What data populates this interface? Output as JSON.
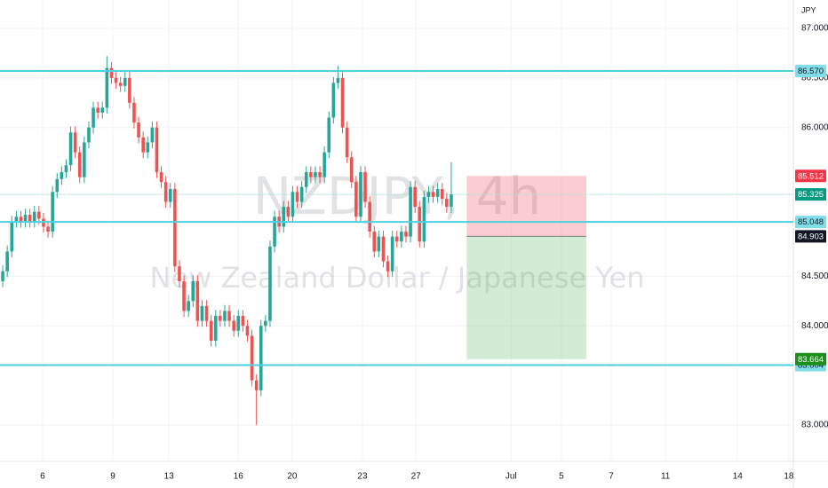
{
  "chart_data": {
    "type": "candlestick",
    "currency": "JPY",
    "watermark": {
      "symbol": "NZDJPY, 4h",
      "description": "New Zealand Dollar / Japanese Yen"
    },
    "up_color": "#26a69a",
    "down_color": "#ef5350",
    "open": [
      84.45,
      84.55,
      84.75,
      85.05,
      85.1,
      85.05,
      85.12,
      85.05,
      85.15,
      85.08,
      85.0,
      84.95,
      85.35,
      85.48,
      85.55,
      85.62,
      85.95,
      85.75,
      85.5,
      85.85,
      86.0,
      86.2,
      86.15,
      86.2,
      86.6,
      86.5,
      86.45,
      86.42,
      86.5,
      86.25,
      86.05,
      85.9,
      85.75,
      85.85,
      86.0,
      85.55,
      85.45,
      85.25,
      85.38,
      84.6,
      84.45,
      84.15,
      84.25,
      84.45,
      84.05,
      84.2,
      84.05,
      83.85,
      84.1,
      84.05,
      84.15,
      84.05,
      83.95,
      84.1,
      84.0,
      83.9,
      83.45,
      83.35,
      84.0,
      84.05,
      84.8,
      85.1,
      85.0,
      85.2,
      85.1,
      85.35,
      85.25,
      85.4,
      85.55,
      85.5,
      85.55,
      85.5,
      85.75,
      86.1,
      86.45,
      86.5,
      86.0,
      85.7,
      85.45,
      85.1,
      85.55,
      85.25,
      84.95,
      84.75,
      84.9,
      84.65,
      84.55,
      84.9,
      84.85,
      84.95,
      84.9,
      85.4,
      85.2,
      84.85,
      85.3,
      85.35,
      85.3,
      85.38,
      85.28,
      85.2
    ],
    "high": [
      84.61,
      84.81,
      85.11,
      85.16,
      85.16,
      85.18,
      85.18,
      85.21,
      85.21,
      85.14,
      85.06,
      85.41,
      85.54,
      85.61,
      85.68,
      86.01,
      86.01,
      85.81,
      85.91,
      86.06,
      86.26,
      86.26,
      86.26,
      86.72,
      86.66,
      86.56,
      86.51,
      86.56,
      86.56,
      86.31,
      86.11,
      85.96,
      85.91,
      86.06,
      86.06,
      85.61,
      85.51,
      85.44,
      85.44,
      84.66,
      84.51,
      84.31,
      84.51,
      84.51,
      84.26,
      84.26,
      84.11,
      84.16,
      84.16,
      84.21,
      84.21,
      84.11,
      84.16,
      84.16,
      84.06,
      83.96,
      83.51,
      84.06,
      84.11,
      84.86,
      85.16,
      85.16,
      85.26,
      85.26,
      85.41,
      85.41,
      85.46,
      85.61,
      85.61,
      85.61,
      85.61,
      85.81,
      86.16,
      86.51,
      86.62,
      86.56,
      86.06,
      85.76,
      85.51,
      85.61,
      85.61,
      85.31,
      85.01,
      84.96,
      84.96,
      84.71,
      84.96,
      84.96,
      85.01,
      85.01,
      85.46,
      85.46,
      85.26,
      85.36,
      85.41,
      85.41,
      85.44,
      85.44,
      85.34,
      85.65
    ],
    "low": [
      84.39,
      84.49,
      84.69,
      84.99,
      84.99,
      84.99,
      84.99,
      84.99,
      85.02,
      84.94,
      84.89,
      84.89,
      85.29,
      85.42,
      85.49,
      85.56,
      85.69,
      85.44,
      85.44,
      85.79,
      85.94,
      86.09,
      86.09,
      86.14,
      86.44,
      86.39,
      86.36,
      86.36,
      86.19,
      85.99,
      85.84,
      85.69,
      85.69,
      85.79,
      85.49,
      85.39,
      85.19,
      85.19,
      84.54,
      84.39,
      84.09,
      84.09,
      84.19,
      83.99,
      83.99,
      83.99,
      83.79,
      83.79,
      83.99,
      83.99,
      83.99,
      83.89,
      83.89,
      83.94,
      83.84,
      83.39,
      83.0,
      83.29,
      83.94,
      83.99,
      84.74,
      84.94,
      84.94,
      85.04,
      85.04,
      85.19,
      85.19,
      85.34,
      85.44,
      85.44,
      85.44,
      85.44,
      85.69,
      86.04,
      86.39,
      85.94,
      85.64,
      85.39,
      85.04,
      85.04,
      85.19,
      84.89,
      84.69,
      84.69,
      84.59,
      84.49,
      84.49,
      84.79,
      84.79,
      84.84,
      84.84,
      85.14,
      84.79,
      84.79,
      85.24,
      85.24,
      85.24,
      85.22,
      85.14,
      85.14
    ],
    "close": [
      84.55,
      84.75,
      85.05,
      85.1,
      85.05,
      85.12,
      85.05,
      85.15,
      85.08,
      85.0,
      84.95,
      85.35,
      85.48,
      85.55,
      85.62,
      85.95,
      85.75,
      85.5,
      85.85,
      86.0,
      86.2,
      86.15,
      86.2,
      86.6,
      86.5,
      86.45,
      86.42,
      86.5,
      86.25,
      86.05,
      85.9,
      85.75,
      85.85,
      86.0,
      85.55,
      85.45,
      85.25,
      85.38,
      84.6,
      84.45,
      84.15,
      84.25,
      84.45,
      84.05,
      84.2,
      84.05,
      83.85,
      84.1,
      84.05,
      84.15,
      84.05,
      83.95,
      84.1,
      84.0,
      83.9,
      83.45,
      83.35,
      84.0,
      84.05,
      84.8,
      85.1,
      85.0,
      85.2,
      85.1,
      85.35,
      85.25,
      85.4,
      85.55,
      85.5,
      85.55,
      85.5,
      85.75,
      86.1,
      86.45,
      86.5,
      86.0,
      85.7,
      85.45,
      85.1,
      85.55,
      85.25,
      84.95,
      84.75,
      84.9,
      84.65,
      84.55,
      84.9,
      84.85,
      84.95,
      84.9,
      85.4,
      85.2,
      84.85,
      85.3,
      85.35,
      85.3,
      85.38,
      85.28,
      85.2,
      85.325
    ],
    "xlim": [
      -0.6,
      174.5
    ],
    "xticks": [
      {
        "value": 8.8,
        "label": "6"
      },
      {
        "value": 24.3,
        "label": "9"
      },
      {
        "value": 36.7,
        "label": "13"
      },
      {
        "value": 52,
        "label": "16"
      },
      {
        "value": 63.9,
        "label": "20"
      },
      {
        "value": 79.4,
        "label": "23"
      },
      {
        "value": 91.2,
        "label": "27"
      },
      {
        "value": 112.2,
        "label": "Jul"
      },
      {
        "value": 123.3,
        "label": "5"
      },
      {
        "value": 134.3,
        "label": "7"
      },
      {
        "value": 146.3,
        "label": "11"
      },
      {
        "value": 162.2,
        "label": "14"
      },
      {
        "value": 173.5,
        "label": "18"
      }
    ],
    "ylim": [
      82.633,
      87.286
    ],
    "yticks": [
      {
        "value": 87,
        "label": "87.000"
      },
      {
        "value": 86.5,
        "label": "86.500"
      },
      {
        "value": 86,
        "label": "86.000"
      },
      {
        "value": 84.5,
        "label": "84.500"
      },
      {
        "value": 84,
        "label": "84.000"
      },
      {
        "value": 83,
        "label": "83.000"
      }
    ],
    "grid": true,
    "levels": [
      {
        "value": 86.57,
        "label": "86.570"
      },
      85.048,
      83.604
    ],
    "level_color": "#4dd0e1",
    "last_price": 85.325,
    "position": {
      "stop": 85.512,
      "entry": 84.903,
      "target": 83.664,
      "start": 102.4,
      "end": 128.8
    }
  }
}
